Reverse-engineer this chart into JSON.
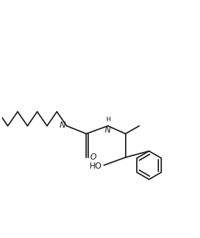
{
  "background_color": "#ffffff",
  "line_color": "#1a1a1a",
  "line_width": 1.3,
  "font_size": 8.5,
  "figure_width": 2.88,
  "figure_height": 3.43,
  "dpi": 100,
  "xlim": [
    0,
    10
  ],
  "ylim": [
    0,
    11.9
  ]
}
